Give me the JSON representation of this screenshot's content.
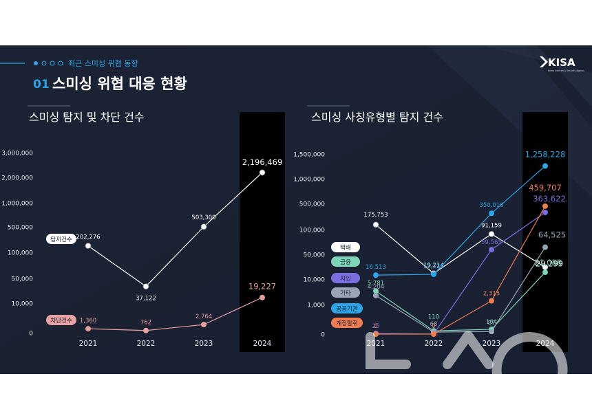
{
  "header": {
    "subtitle": "최근 스미싱 위협 동향",
    "section_number": "01",
    "section_title": "스미싱 위협 대응 현황",
    "logo_text": "KISA",
    "logo_caption": "Korea Internet & Security Agency"
  },
  "colors": {
    "background": "#1b2233",
    "accent": "#2aa6e8",
    "highlight_column": "#000000",
    "detect_line": "#ffffff",
    "block_line": "#e8a0a0"
  },
  "chart_data": [
    {
      "type": "line",
      "title": "스미싱 탐지 및 차단 건수",
      "x": [
        "2021",
        "2022",
        "2023",
        "2024"
      ],
      "highlight_category": "2024",
      "y_scale": "broken",
      "y_ticks": [
        0,
        10000,
        50000,
        100000,
        500000,
        1000000,
        2000000,
        3000000
      ],
      "y_tick_labels": [
        "0",
        "10,000",
        "50,000",
        "100,000",
        "500,000",
        "1,000,000",
        "2,000,000",
        "3,000,000"
      ],
      "series": [
        {
          "name": "탐지건수",
          "color": "#ffffff",
          "values": [
            202276,
            37122,
            503300,
            2196469
          ],
          "labels": [
            "202,276",
            "37,122",
            "503,300",
            "2,196,469"
          ]
        },
        {
          "name": "차단건수",
          "color": "#e8a0a0",
          "values": [
            1360,
            762,
            2764,
            19227
          ],
          "labels": [
            "1,360",
            "762",
            "2,764",
            "19,227"
          ]
        }
      ]
    },
    {
      "type": "line",
      "title": "스미싱 사칭유형별 탐지 건수",
      "x": [
        "2021",
        "2022",
        "2023",
        "2024"
      ],
      "highlight_category": "2024",
      "y_scale": "broken",
      "y_ticks": [
        0,
        1000,
        10000,
        50000,
        100000,
        500000,
        1000000,
        1500000
      ],
      "y_tick_labels": [
        "0",
        "1,000",
        "10,000",
        "50,000",
        "100,000",
        "500,000",
        "1,000,000",
        "1,500,000"
      ],
      "series": [
        {
          "name": "택배",
          "color": "#ffffff",
          "values": [
            175753,
            19214,
            91159,
            29299
          ],
          "labels": [
            "175,753",
            "19,214",
            "91,159",
            "29,299"
          ]
        },
        {
          "name": "금융",
          "color": "#7ed6b8",
          "values": [
            5781,
            110,
            164,
            21088
          ],
          "labels": [
            "5,781",
            "110",
            "164",
            "21,088"
          ]
        },
        {
          "name": "지인",
          "color": "#7b6fe0",
          "values": [
            25,
            4,
            59565,
            363622
          ],
          "labels": [
            "25",
            "4",
            "59,565",
            "363,622"
          ]
        },
        {
          "name": "기타",
          "color": "#9aa6b8",
          "values": [
            4204,
            68,
            87,
            64525
          ],
          "labels": [
            "4,204",
            "68",
            "87",
            "64,525"
          ]
        },
        {
          "name": "공공기관",
          "color": "#2aa6e8",
          "values": [
            16513,
            17726,
            350010,
            1258228
          ],
          "labels": [
            "16,513",
            "17,726",
            "350,010",
            "1,258,228"
          ]
        },
        {
          "name": "계정탈취",
          "color": "#f07c50",
          "values": [
            0,
            0,
            2315,
            459707
          ],
          "labels": [
            "0",
            "0",
            "2,315",
            "459,707"
          ]
        }
      ]
    }
  ]
}
